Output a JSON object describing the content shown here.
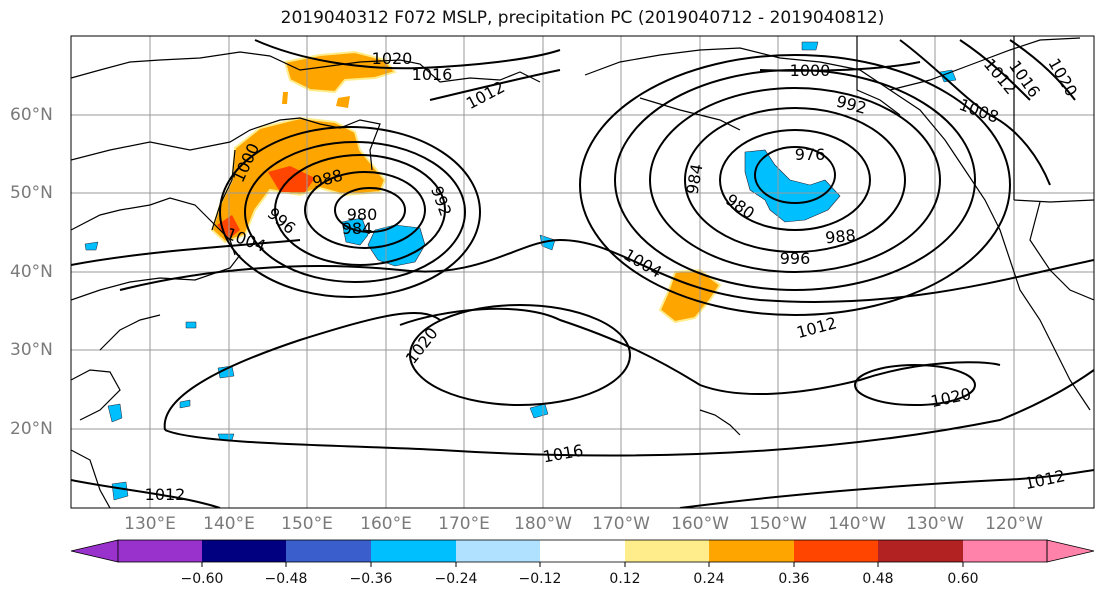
{
  "title": "2019040312 F072 MSLP, precipitation PC (2019040712 - 2019040812)",
  "lon_labels": [
    "130°E",
    "140°E",
    "150°E",
    "160°E",
    "170°E",
    "180°W",
    "170°W",
    "160°W",
    "150°W",
    "140°W",
    "130°W",
    "120°W"
  ],
  "lat_labels": [
    "60°N",
    "50°N",
    "40°N",
    "30°N",
    "20°N"
  ],
  "colorbar": {
    "colors": [
      "#9932cc",
      "#000080",
      "#3a5fcd",
      "#00bfff",
      "#b0e2ff",
      "#ffffff",
      "#ffec8b",
      "#ffa500",
      "#ff4500",
      "#b22222",
      "#ff82ab"
    ],
    "ticks": [
      "−0.60",
      "−0.48",
      "−0.36",
      "−0.24",
      "−0.12",
      "0.12",
      "0.24",
      "0.36",
      "0.48",
      "0.60"
    ]
  },
  "isobar_labels": {
    "l1020a": "1020",
    "l1016a": "1016",
    "l1012a": "1012",
    "l1000a": "1000",
    "l988a": "988",
    "l980a": "980",
    "l984a": "984",
    "l992a": "992",
    "l996a": "996",
    "l1004a": "1004",
    "l1000b": "1000",
    "l976b": "976",
    "l984b": "984",
    "l980b": "980",
    "l988b": "988",
    "l996b": "996",
    "l1004b": "1004",
    "l1012b": "1012",
    "l1020b": "1020",
    "l1016b": "1016",
    "l1012c": "1012",
    "l1020c": "1020",
    "l1012d": "1012",
    "l992b": "992",
    "l1008e": "1008",
    "l1012e": "1012",
    "l1016e": "1016",
    "l1020e": "1020"
  }
}
